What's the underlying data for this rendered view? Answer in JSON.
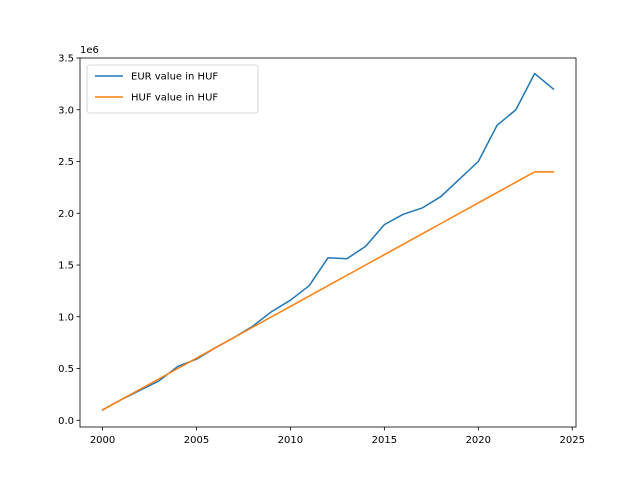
{
  "chart_data": {
    "type": "line",
    "title": "",
    "xlabel": "",
    "ylabel": "",
    "y_offset_label": "1e6",
    "x_ticks": [
      2000,
      2005,
      2010,
      2015,
      2020,
      2025
    ],
    "x_tick_labels": [
      "2000",
      "2005",
      "2010",
      "2015",
      "2020",
      "2025"
    ],
    "y_ticks": [
      0.0,
      0.5,
      1.0,
      1.5,
      2.0,
      2.5,
      3.0,
      3.5
    ],
    "y_tick_labels": [
      "0.0",
      "0.5",
      "1.0",
      "1.5",
      "2.0",
      "2.5",
      "3.0",
      "3.5"
    ],
    "xlim": [
      1998.8,
      2025.2
    ],
    "ylim": [
      -0.065,
      3.5
    ],
    "grid": false,
    "legend_position": "upper-left",
    "x": [
      2000,
      2001,
      2002,
      2003,
      2004,
      2005,
      2006,
      2007,
      2008,
      2009,
      2010,
      2011,
      2012,
      2013,
      2014,
      2015,
      2016,
      2017,
      2018,
      2019,
      2020,
      2021,
      2022,
      2023,
      2024
    ],
    "series": [
      {
        "name": "EUR value in HUF",
        "color": "#1f77b4",
        "values": [
          0.1,
          0.2,
          0.29,
          0.38,
          0.52,
          0.59,
          0.7,
          0.8,
          0.91,
          1.05,
          1.16,
          1.3,
          1.57,
          1.56,
          1.68,
          1.89,
          1.99,
          2.05,
          2.16,
          2.33,
          2.5,
          2.85,
          3.0,
          3.35,
          3.2
        ]
      },
      {
        "name": "HUF value in HUF",
        "color": "#ff7f0e",
        "values": [
          0.1,
          0.2,
          0.3,
          0.4,
          0.5,
          0.6,
          0.7,
          0.8,
          0.9,
          1.0,
          1.1,
          1.2,
          1.3,
          1.4,
          1.5,
          1.6,
          1.7,
          1.8,
          1.9,
          2.0,
          2.1,
          2.2,
          2.3,
          2.4,
          2.4
        ]
      }
    ]
  }
}
